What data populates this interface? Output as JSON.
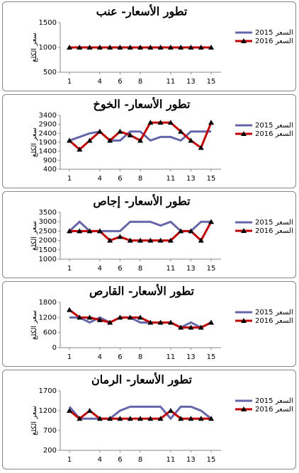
{
  "chart_data": [
    {
      "type": "line",
      "title": "تطور الأسعار- عنب",
      "ylabel": "سعر الكلغ",
      "x": [
        1,
        2,
        3,
        4,
        5,
        6,
        7,
        8,
        9,
        10,
        11,
        12,
        13,
        14,
        15
      ],
      "xlim": [
        1,
        15
      ],
      "xticks": [
        1,
        4,
        6,
        8,
        11,
        13,
        15
      ],
      "ylim": [
        500,
        1500
      ],
      "yticks": [
        500,
        1000,
        1500
      ],
      "series": [
        {
          "name": "السعر 2015",
          "color": "#6666aa",
          "values": [
            1000,
            1000,
            1000,
            1000,
            1000,
            1000,
            1000,
            1000,
            1000,
            1000,
            1000,
            1000,
            1000,
            1000,
            1000
          ]
        },
        {
          "name": "السعر 2016",
          "color": "#c00000",
          "marker": "triangle",
          "values": [
            1000,
            1000,
            1000,
            1000,
            1000,
            1000,
            1000,
            1000,
            1000,
            1000,
            1000,
            1000,
            1000,
            1000,
            1000
          ]
        }
      ]
    },
    {
      "type": "line",
      "title": "تطور الأسعار- الخوخ",
      "ylabel": "سعر الكلغ",
      "x": [
        1,
        2,
        3,
        4,
        5,
        6,
        7,
        8,
        9,
        10,
        11,
        12,
        13,
        14,
        15
      ],
      "xlim": [
        1,
        15
      ],
      "xticks": [
        1,
        4,
        6,
        8,
        11,
        13,
        15
      ],
      "ylim": [
        400,
        3400
      ],
      "yticks": [
        400,
        900,
        1400,
        1900,
        2400,
        2900,
        3400
      ],
      "series": [
        {
          "name": "السعر 2015",
          "color": "#6666aa",
          "values": [
            2000,
            2200,
            2400,
            2500,
            2000,
            2000,
            2500,
            2500,
            2000,
            2200,
            2200,
            2000,
            2500,
            2500,
            2500
          ]
        },
        {
          "name": "السعر 2016",
          "color": "#c00000",
          "marker": "triangle",
          "values": [
            2000,
            1500,
            2000,
            2500,
            2000,
            2500,
            2300,
            2000,
            3000,
            3000,
            3000,
            2500,
            2000,
            1600,
            3000
          ]
        }
      ]
    },
    {
      "type": "line",
      "title": "تطور الأسعار- إجاص",
      "ylabel": "سعر الكلغ",
      "x": [
        1,
        2,
        3,
        4,
        5,
        6,
        7,
        8,
        9,
        10,
        11,
        12,
        13,
        14,
        15
      ],
      "xlim": [
        1,
        15
      ],
      "xticks": [
        1,
        4,
        6,
        8,
        11,
        13,
        15
      ],
      "ylim": [
        1000,
        3500
      ],
      "yticks": [
        1000,
        1500,
        2000,
        2500,
        3000,
        3500
      ],
      "series": [
        {
          "name": "السعر 2015",
          "color": "#6666aa",
          "values": [
            2500,
            3000,
            2500,
            2500,
            2500,
            2500,
            3000,
            3000,
            3000,
            2800,
            3000,
            2500,
            2500,
            3000,
            3000
          ]
        },
        {
          "name": "السعر 2016",
          "color": "#c00000",
          "marker": "triangle",
          "values": [
            2500,
            2500,
            2500,
            2500,
            2000,
            2200,
            2000,
            2000,
            2000,
            2000,
            2000,
            2500,
            2500,
            2000,
            3000
          ]
        }
      ]
    },
    {
      "type": "line",
      "title": "تطور الأسعار- القارص",
      "ylabel": "سعر الكلغ",
      "x": [
        1,
        2,
        3,
        4,
        5,
        6,
        7,
        8,
        9,
        10,
        11,
        12,
        13,
        14,
        15
      ],
      "xlim": [
        1,
        15
      ],
      "xticks": [
        1,
        4,
        6,
        8,
        11,
        13,
        15
      ],
      "ylim": [
        0,
        1800
      ],
      "yticks": [
        0,
        600,
        1200,
        1800
      ],
      "series": [
        {
          "name": "السعر 2015",
          "color": "#6666aa",
          "values": [
            1200,
            1200,
            1000,
            1200,
            1000,
            1200,
            1200,
            1000,
            1000,
            1000,
            1000,
            800,
            1000,
            800,
            1000
          ]
        },
        {
          "name": "السعر 2016",
          "color": "#c00000",
          "marker": "triangle",
          "values": [
            1500,
            1200,
            1200,
            1100,
            1000,
            1200,
            1200,
            1200,
            1000,
            1000,
            1000,
            800,
            800,
            800,
            1000
          ]
        }
      ]
    },
    {
      "type": "line",
      "title": "تطور الأسعار- الرمان",
      "ylabel": "سعر الكلغ",
      "x": [
        1,
        2,
        3,
        4,
        5,
        6,
        7,
        8,
        9,
        10,
        11,
        12,
        13,
        14,
        15
      ],
      "xlim": [
        1,
        15
      ],
      "xticks": [
        1,
        4,
        6,
        8,
        11,
        13,
        15
      ],
      "ylim": [
        200,
        1700
      ],
      "yticks": [
        200,
        700,
        1200,
        1700
      ],
      "series": [
        {
          "name": "السعر 2015",
          "color": "#6666aa",
          "values": [
            1300,
            1000,
            1000,
            1000,
            1000,
            1200,
            1300,
            1300,
            1300,
            1300,
            1000,
            1300,
            1300,
            1200,
            1000
          ]
        },
        {
          "name": "السعر 2016",
          "color": "#c00000",
          "marker": "triangle",
          "values": [
            1200,
            1000,
            1200,
            1000,
            1000,
            1000,
            1000,
            1000,
            1000,
            1000,
            1200,
            1000,
            1000,
            1000,
            1000
          ]
        }
      ]
    }
  ]
}
